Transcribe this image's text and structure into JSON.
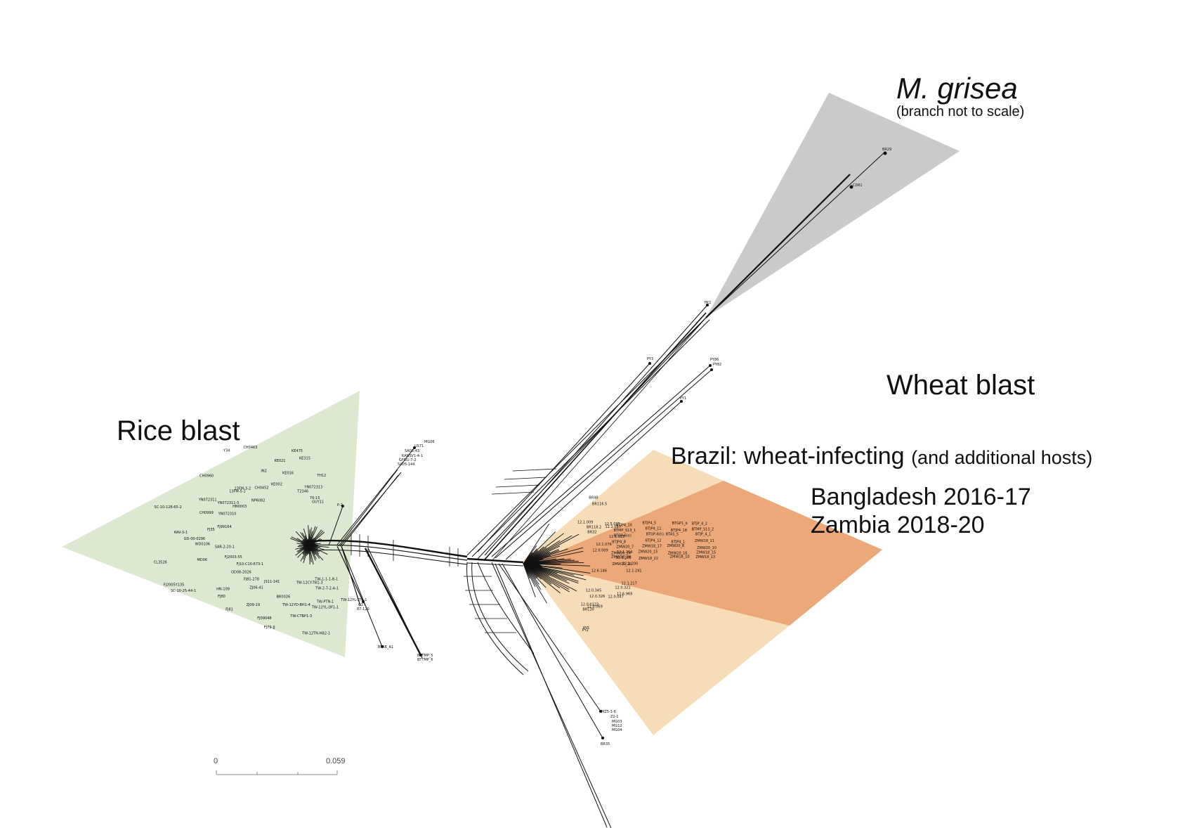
{
  "clades": {
    "rice": {
      "label": "Rice blast",
      "color": "#dce8cf"
    },
    "mgrisea": {
      "label": "M. grisea",
      "note": "(branch not to scale)",
      "color": "#c9cacc"
    },
    "wheat": {
      "label": "Wheat blast"
    },
    "brazil": {
      "label": "Brazil: wheat-infecting",
      "paren": "(and additional hosts)",
      "color": "#f6ddb8"
    },
    "outbreak": {
      "line1": "Bangladesh 2016-17",
      "line2": "Zambia 2018-20",
      "color": "#eca878"
    }
  },
  "scale_bar": {
    "start": "0",
    "end": "0.059"
  },
  "tip_labels": {
    "mgrisea": [
      "BR29",
      "CD61"
    ],
    "central": [
      "PY3",
      "PY86",
      "PY82",
      "PY1",
      "PK1"
    ],
    "lower": [
      "MZ5-1-6",
      "Z2-1",
      "MG03",
      "MG12",
      "MG04",
      "BR35",
      "B51",
      "MG07"
    ],
    "mid_cluster": [
      "MG06",
      "US71",
      "SA05-43",
      "KANSV1-4-1",
      "GFSI1-7-2",
      "SA05-144",
      "P-2",
      "G17",
      "87-120",
      "BTAR_A1",
      "BTTMP_5",
      "BTTMP_6"
    ],
    "rice": [
      "TW-12YL-TT4-1",
      "TW-1-1-1-B-1",
      "TW-2-7-2-A-1",
      "TW-PTN-1",
      "TW-12YL-DF1-1",
      "TW-12CY-TB1-3",
      "TW-12TN-HB2-1",
      "TW-CTBP1-3",
      "TW-12YD-BH1-4",
      "BR0026",
      "FJ79-JJ",
      "FJ09048",
      "JS11-141",
      "ZJ09-19",
      "ZJ06-41",
      "FJ81",
      "FJ81-278",
      "FJ80",
      "HN-109",
      "OD08-2026",
      "FJ10-C10-673-1",
      "SC-10-25-44-1",
      "FJ2005Y135",
      "FJ2003-55",
      "MD06",
      "CL3526",
      "SAR-2-20-1",
      "WD0106",
      "GD-00-0296",
      "KAV-3-1",
      "FJ35",
      "FJ99164",
      "SC-10-128-65-2",
      "CH0999",
      "YN072310",
      "YN072311",
      "YN072311-5",
      "HN0003",
      "CH0960",
      "13FM-5-1",
      "13FM-3-2",
      "NP6082",
      "Y34",
      "CH0452",
      "CH0463",
      "IN2",
      "KE002",
      "KE021",
      "KE016",
      "KE475",
      "KE315",
      "T2346",
      "YN072313",
      "TH12",
      "70-15",
      "GUY11"
    ],
    "brazil": [
      "BR48",
      "BR116.5",
      "12.1.009",
      "BR32",
      "BR118.2",
      "12.5.035",
      "12.1.037",
      "12.1.018",
      "12.1.076",
      "12.0.009",
      "12.1.264",
      "12.1.205",
      "12.1.200",
      "12.1.241",
      "12.6.146",
      "12.1.217",
      "12.0.321",
      "12.6.969",
      "12.0.047",
      "12.0.326",
      "12.0.345",
      "12.0.069",
      "12.0.0123",
      "BR130",
      "PY5",
      "PY2"
    ],
    "outbreak": [
      "BTJP4_16",
      "BTJP4_5",
      "BTGP1_b",
      "BTJP_4_2",
      "BTMP_S13_1",
      "BTJP4_11",
      "BTJP4_18",
      "BTMP_S13_2",
      "BTGP-6(e)",
      "BTGP-6(h)",
      "BTAS_5",
      "BTJP_4_1",
      "BTJP4_8",
      "BTJP4_12",
      "BTJP4_1",
      "ZMW18_11",
      "ZMW20_7",
      "ZMW18_17",
      "ZMW20_8",
      "ZMW20_10",
      "ZMW20_14",
      "ZMW20_15",
      "ZMW20_16",
      "ZMW18_15",
      "ZMW18_20",
      "ZMW18_22",
      "ZMW18_10",
      "ZMW18_13",
      "ZMW20_20"
    ]
  }
}
